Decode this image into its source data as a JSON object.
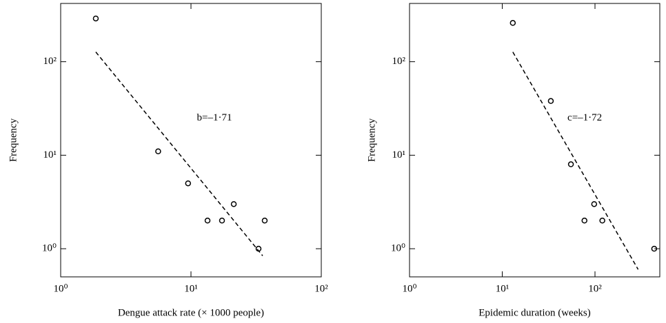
{
  "chart_data": [
    {
      "type": "scatter",
      "xlabel": "Dengue attack rate (× 1000 people)",
      "ylabel": "Frequency",
      "xscale": "log",
      "yscale": "log",
      "xlim": [
        1,
        100
      ],
      "ylim": [
        0.5,
        420
      ],
      "xticks": [
        {
          "value": 1,
          "label": "10⁰"
        },
        {
          "value": 10,
          "label": "10¹"
        },
        {
          "value": 100,
          "label": "10²"
        }
      ],
      "yticks": [
        {
          "value": 1,
          "label": "10⁰"
        },
        {
          "value": 10,
          "label": "10¹"
        },
        {
          "value": 100,
          "label": "10²"
        }
      ],
      "color": "#000000",
      "x": [
        1.86,
        5.6,
        9.5,
        13.4,
        17.3,
        21.3,
        33,
        36.8
      ],
      "y": [
        290,
        11,
        5,
        2,
        2,
        3,
        1,
        2
      ],
      "fit": {
        "x": [
          1.86,
          35.5
        ],
        "y": [
          127,
          0.84
        ]
      },
      "annotation": "b=–1·71"
    },
    {
      "type": "scatter",
      "xlabel": "Epidemic duration (weeks)",
      "ylabel": "Frequency",
      "xscale": "log",
      "yscale": "log",
      "xlim": [
        1,
        500
      ],
      "ylim": [
        0.5,
        420
      ],
      "xticks": [
        {
          "value": 1,
          "label": "10⁰"
        },
        {
          "value": 10,
          "label": "10¹"
        },
        {
          "value": 100,
          "label": "10²"
        }
      ],
      "yticks": [
        {
          "value": 1,
          "label": "10⁰"
        },
        {
          "value": 10,
          "label": "10¹"
        },
        {
          "value": 100,
          "label": "10²"
        }
      ],
      "color": "#000000",
      "x": [
        13,
        33.4,
        55,
        77,
        98,
        120,
        435
      ],
      "y": [
        260,
        38,
        8,
        2,
        3,
        2,
        1
      ],
      "fit": {
        "x": [
          13,
          292
        ],
        "y": [
          127,
          0.6
        ]
      },
      "annotation": "c=–1·72"
    }
  ]
}
